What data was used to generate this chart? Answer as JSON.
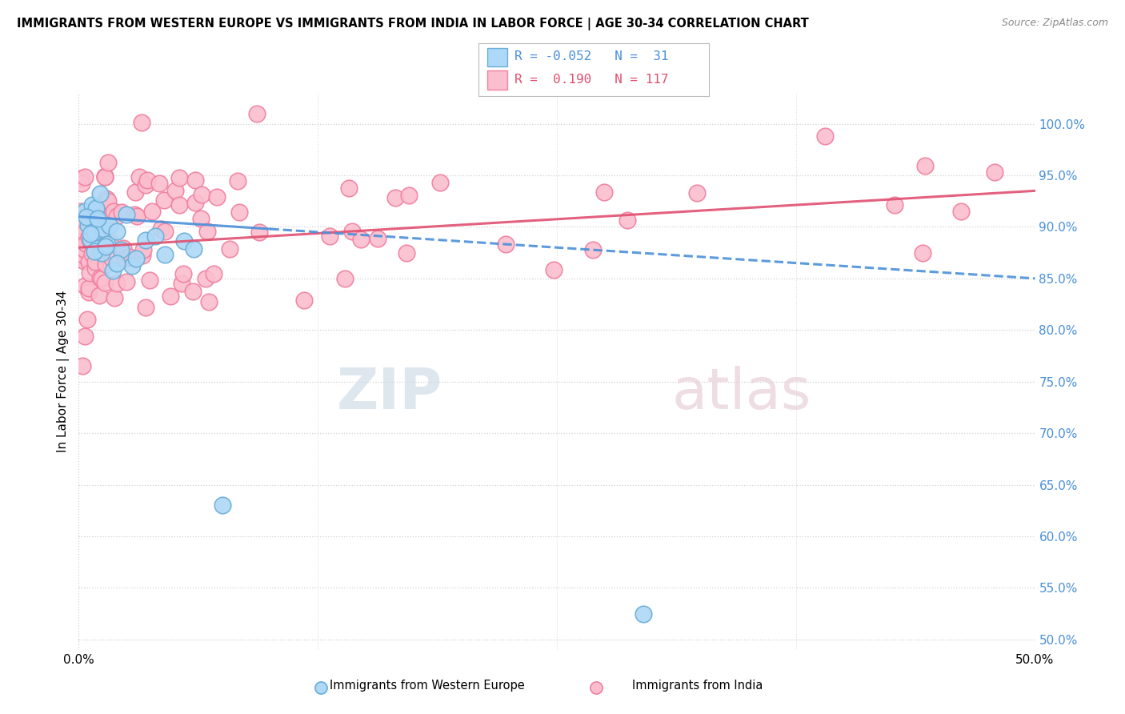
{
  "title": "IMMIGRANTS FROM WESTERN EUROPE VS IMMIGRANTS FROM INDIA IN LABOR FORCE | AGE 30-34 CORRELATION CHART",
  "source": "Source: ZipAtlas.com",
  "xlim": [
    0.0,
    50.0
  ],
  "ylim": [
    49.0,
    103.0
  ],
  "ylabel": "In Labor Force | Age 30-34",
  "legend_blue_label": "Immigrants from Western Europe",
  "legend_pink_label": "Immigrants from India",
  "R_blue": -0.052,
  "N_blue": 31,
  "R_pink": 0.19,
  "N_pink": 117,
  "blue_color": "#add8f7",
  "pink_color": "#fbbece",
  "blue_edge_color": "#6aaed6",
  "pink_edge_color": "#f080a0",
  "blue_line_color": "#4a90d9",
  "pink_line_color": "#e05070",
  "background_color": "#ffffff",
  "grid_color": "#d0d0d0",
  "ytick_vals": [
    50,
    55,
    60,
    65,
    70,
    75,
    80,
    85,
    90,
    95,
    100
  ],
  "xtick_vals": [
    0.0,
    50.0
  ],
  "watermark_color": "#d0dde8",
  "watermark_color2": "#e8d0d8"
}
